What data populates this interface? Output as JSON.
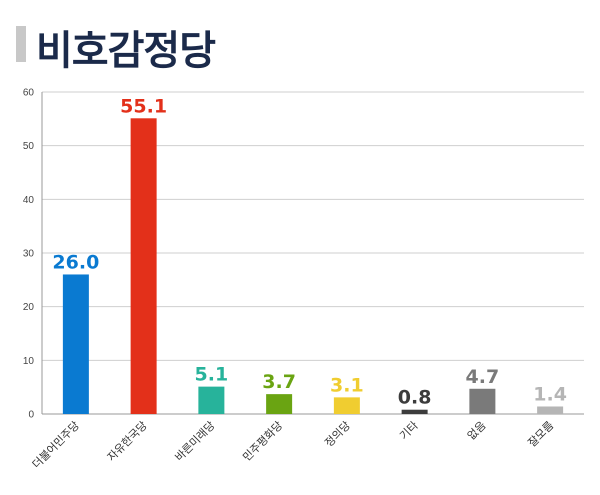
{
  "title": "비호감정당",
  "chart_data": {
    "type": "bar",
    "categories": [
      "더불어민주당",
      "자유한국당",
      "바른미래당",
      "민주평화당",
      "정의당",
      "기타",
      "없음",
      "잘모름"
    ],
    "values": [
      26.0,
      55.1,
      5.1,
      3.7,
      3.1,
      0.8,
      4.7,
      1.4
    ],
    "value_labels": [
      "26.0",
      "55.1",
      "5.1",
      "3.7",
      "3.1",
      "0.8",
      "4.7",
      "1.4"
    ],
    "colors": [
      "#0a7ad1",
      "#e3301a",
      "#27b39b",
      "#6aa412",
      "#f0cd30",
      "#3c3c3c",
      "#7a7a7a",
      "#b5b5b5"
    ],
    "yticks": [
      0,
      10,
      20,
      30,
      40,
      50,
      60
    ],
    "ylim": [
      0,
      60
    ],
    "grid": true
  }
}
